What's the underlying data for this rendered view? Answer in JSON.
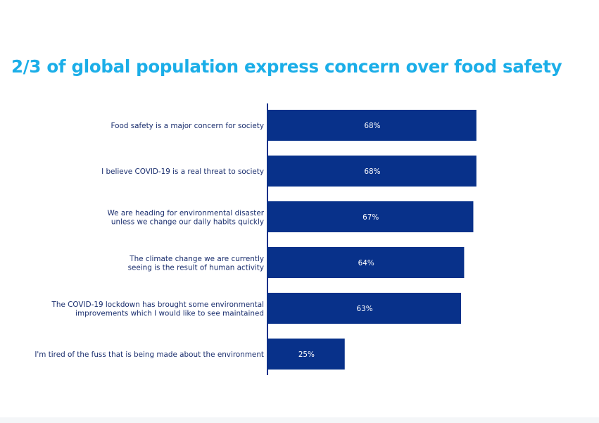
{
  "title": "2/3 of global population express concern over food safety",
  "colors": {
    "title": "#1BAEE8",
    "bar": "#08318A",
    "axis": "#08318A",
    "label_text": "#1a2e6e"
  },
  "chart_data": {
    "type": "bar",
    "orientation": "horizontal",
    "title": "2/3 of global population express concern over food safety",
    "categories": [
      [
        "Food safety is a major concern for society"
      ],
      [
        "I believe COVID-19 is a real threat to society"
      ],
      [
        "We are heading for environmental disaster",
        "unless we change our daily habits quickly"
      ],
      [
        "The climate change we are currently",
        "seeing is the result of human activity"
      ],
      [
        "The COVID-19 lockdown has brought some environmental",
        "improvements which I would like to see maintained"
      ],
      [
        "I'm tired of the fuss that is being made about the environment"
      ]
    ],
    "values": [
      68,
      68,
      67,
      64,
      63,
      25
    ],
    "value_labels": [
      "68%",
      "68%",
      "67%",
      "64%",
      "63%",
      "25%"
    ],
    "unit": "%",
    "xlim": [
      0,
      100
    ],
    "grid": false,
    "legend": "none"
  }
}
